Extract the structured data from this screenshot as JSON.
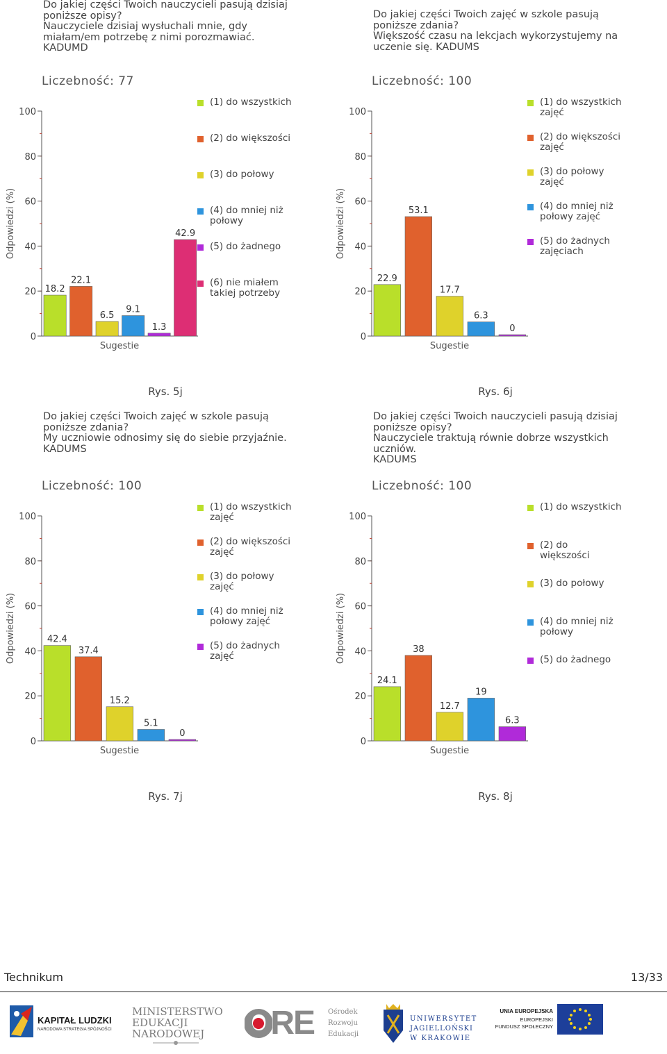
{
  "colors": {
    "c1": "#b9df2a",
    "c2": "#e0612d",
    "c3": "#dfd22b",
    "c4": "#2e94dd",
    "c5": "#b02ad9",
    "c6": "#dd2e74"
  },
  "chart_data": [
    {
      "type": "bar",
      "title": "Do jakiej części Twoich nauczycieli pasują dzisiaj poniższe opisy?\nNauczyciele dzisiaj wysłuchali mnie, gdy miałam/em potrzebę z nimi porozmawiać.\nKADUMD",
      "count_label": "Liczebność: 77",
      "xlabel": "Sugestie",
      "ylabel": "Odpowiedzi (%)",
      "ylim": [
        0,
        100
      ],
      "yticks": [
        0,
        20,
        40,
        60,
        80,
        100
      ],
      "categories": [
        "(1) do wszystkich",
        "(2) do większości",
        "(3) do połowy",
        "(4) do mniej niż połowy",
        "(5) do żadnego",
        "(6) nie miałem takiej potrzeby"
      ],
      "values": [
        18.2,
        22.1,
        6.5,
        9.1,
        1.3,
        42.9
      ],
      "value_labels": [
        "18.2",
        "22.1",
        "6.5",
        "9.1",
        "1.3",
        "42.9"
      ],
      "legend": [
        {
          "label": "(1) do wszystkich",
          "color": "#b9df2a"
        },
        {
          "label": "(2) do większości",
          "color": "#e0612d"
        },
        {
          "label": "(3) do połowy",
          "color": "#dfd22b"
        },
        {
          "label": "(4) do mniej niż\npołowy",
          "color": "#2e94dd"
        },
        {
          "label": "(5) do żadnego",
          "color": "#b02ad9"
        },
        {
          "label": "(6) nie miałem\ntakiej potrzeby",
          "color": "#dd2e74"
        }
      ],
      "caption": "Rys. 5j"
    },
    {
      "type": "bar",
      "title": "Do jakiej części Twoich zajęć w szkole pasują poniższe zdania?\nWiększość czasu na lekcjach wykorzystujemy na uczenie się. KADUMS",
      "count_label": "Liczebność: 100",
      "xlabel": "Sugestie",
      "ylabel": "Odpowiedzi (%)",
      "ylim": [
        0,
        100
      ],
      "yticks": [
        0,
        20,
        40,
        60,
        80,
        100
      ],
      "categories": [
        "(1) do wszystkich zajęć",
        "(2) do większości zajęć",
        "(3) do połowy zajęć",
        "(4) do mniej niż połowy zajęć",
        "(5) do żadnych zajęciach"
      ],
      "values": [
        22.9,
        53.1,
        17.7,
        6.3,
        0
      ],
      "value_labels": [
        "22.9",
        "53.1",
        "17.7",
        "6.3",
        "0"
      ],
      "legend": [
        {
          "label": "(1) do wszystkich\nzajęć",
          "color": "#b9df2a"
        },
        {
          "label": "(2) do większości\nzajęć",
          "color": "#e0612d"
        },
        {
          "label": "(3) do połowy\nzajęć",
          "color": "#dfd22b"
        },
        {
          "label": "(4) do mniej niż\npołowy zajęć",
          "color": "#2e94dd"
        },
        {
          "label": "(5) do żadnych\nzajęciach",
          "color": "#b02ad9"
        }
      ],
      "caption": "Rys. 6j"
    },
    {
      "type": "bar",
      "title": "Do jakiej części Twoich zajęć w szkole pasują poniższe zdania?\nMy uczniowie odnosimy się do siebie przyjaźnie.\nKADUMS",
      "count_label": "Liczebność: 100",
      "xlabel": "Sugestie",
      "ylabel": "Odpowiedzi (%)",
      "ylim": [
        0,
        100
      ],
      "yticks": [
        0,
        20,
        40,
        60,
        80,
        100
      ],
      "categories": [
        "(1) do wszystkich zajęć",
        "(2) do większości zajęć",
        "(3) do połowy zajęć",
        "(4) do mniej niż połowy zajęć",
        "(5) do żadnych zajęć"
      ],
      "values": [
        42.4,
        37.4,
        15.2,
        5.1,
        0
      ],
      "value_labels": [
        "42.4",
        "37.4",
        "15.2",
        "5.1",
        "0"
      ],
      "legend": [
        {
          "label": "(1) do wszystkich\nzajęć",
          "color": "#b9df2a"
        },
        {
          "label": "(2) do większości\nzajęć",
          "color": "#e0612d"
        },
        {
          "label": "(3) do połowy\nzajęć",
          "color": "#dfd22b"
        },
        {
          "label": "(4) do mniej niż\npołowy zajęć",
          "color": "#2e94dd"
        },
        {
          "label": "(5) do żadnych\nzajęć",
          "color": "#b02ad9"
        }
      ],
      "caption": "Rys. 7j"
    },
    {
      "type": "bar",
      "title": "Do jakiej części Twoich nauczycieli pasują dzisiaj poniższe opisy?\nNauczyciele traktują równie dobrze wszystkich uczniów.\nKADUMS",
      "count_label": "Liczebność: 100",
      "xlabel": "Sugestie",
      "ylabel": "Odpowiedzi (%)",
      "ylim": [
        0,
        100
      ],
      "yticks": [
        0,
        20,
        40,
        60,
        80,
        100
      ],
      "categories": [
        "(1) do wszystkich",
        "(2) do większości",
        "(3) do połowy",
        "(4) do mniej niż połowy",
        "(5) do żadnego"
      ],
      "values": [
        24.1,
        38,
        12.7,
        19,
        6.3
      ],
      "value_labels": [
        "24.1",
        "38",
        "12.7",
        "19",
        "6.3"
      ],
      "legend": [
        {
          "label": "(1) do wszystkich",
          "color": "#b9df2a"
        },
        {
          "label": "(2) do\nwiększości",
          "color": "#e0612d"
        },
        {
          "label": "(3) do połowy",
          "color": "#dfd22b"
        },
        {
          "label": "(4) do mniej niż\npołowy",
          "color": "#2e94dd"
        },
        {
          "label": "(5) do żadnego",
          "color": "#b02ad9"
        }
      ],
      "caption": "Rys. 8j"
    }
  ],
  "footer": {
    "left": "Technikum",
    "right": "13/33"
  },
  "logos": {
    "kl_title": "KAPITAŁ LUDZKI",
    "kl_sub": "NARODOWA STRATEGIA SPÓJNOŚCI",
    "men_line1": "MINISTERSTWO",
    "men_line2": "EDUKACJI",
    "men_line3": "NARODOWEJ",
    "ore_text": "ORE",
    "ore_line1": "Ośrodek",
    "ore_line2": "Rozwoju",
    "ore_line3": "Edukacji",
    "uj_line1": "UNIWERSYTET",
    "uj_line2": "JAGIELLOŃSKI",
    "uj_line3": "W KRAKOWIE",
    "eu_line1": "UNIA EUROPEJSKA",
    "eu_line2": "EUROPEJSKI",
    "eu_line3": "FUNDUSZ SPOŁECZNY"
  }
}
